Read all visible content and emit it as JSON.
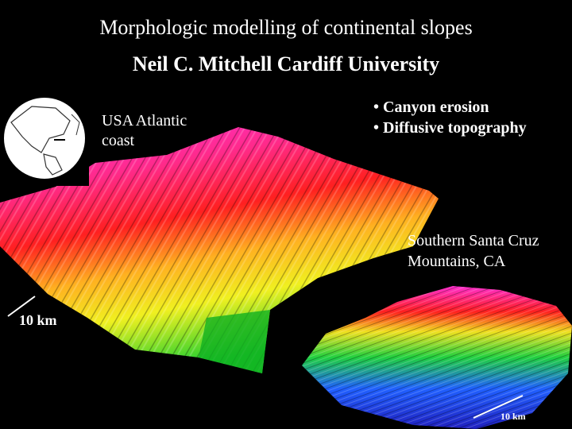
{
  "header": {
    "title": "Morphologic modelling of continental slopes",
    "author_line": "Neil C. Mitchell   Cardiff University"
  },
  "figure_left": {
    "location_label_1": "USA Atlantic",
    "location_label_2": "coast",
    "scale_label": "10 km",
    "globe_icon": "globe-map-icon"
  },
  "bullets": {
    "item1": "• Canyon erosion",
    "item2": "• Diffusive topography"
  },
  "figure_right": {
    "location_label_1": "Southern Santa Cruz",
    "location_label_2": "Mountains, CA",
    "scale_label": "10 km"
  },
  "colors": {
    "background": "#000000",
    "elevation_high": "#ff2fd0",
    "elevation_mid": "#ff2020",
    "elevation_low": "#20d040",
    "elevation_deep": "#2030ff"
  }
}
